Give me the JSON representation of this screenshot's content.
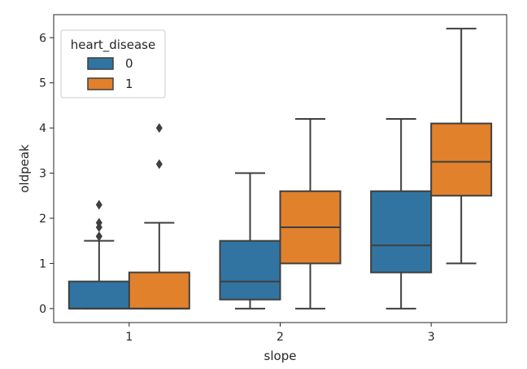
{
  "chart_data": {
    "type": "box",
    "xlabel": "slope",
    "ylabel": "oldpeak",
    "categories": [
      "1",
      "2",
      "3"
    ],
    "ylim": [
      -0.31,
      6.51
    ],
    "yticks": [
      0,
      1,
      2,
      3,
      4,
      5,
      6
    ],
    "legend": {
      "title": "heart_disease",
      "placement": "top-left"
    },
    "series": [
      {
        "name": "0",
        "color": "#3274a1",
        "boxes": [
          {
            "category": "1",
            "whisker_low": 0,
            "q1": 0,
            "median": 0,
            "q3": 0.6,
            "whisker_high": 1.5,
            "outliers": [
              1.6,
              1.6,
              1.8,
              1.9,
              2.3
            ]
          },
          {
            "category": "2",
            "whisker_low": 0,
            "q1": 0.2,
            "median": 0.6,
            "q3": 1.5,
            "whisker_high": 3.0,
            "outliers": []
          },
          {
            "category": "3",
            "whisker_low": 0,
            "q1": 0.8,
            "median": 1.4,
            "q3": 2.6,
            "whisker_high": 4.2,
            "outliers": []
          }
        ]
      },
      {
        "name": "1",
        "color": "#e1812c",
        "boxes": [
          {
            "category": "1",
            "whisker_low": 0,
            "q1": 0,
            "median": 0,
            "q3": 0.8,
            "whisker_high": 1.9,
            "outliers": [
              3.2,
              4.0
            ]
          },
          {
            "category": "2",
            "whisker_low": 0,
            "q1": 1.0,
            "median": 1.8,
            "q3": 2.6,
            "whisker_high": 4.2,
            "outliers": []
          },
          {
            "category": "3",
            "whisker_low": 1.0,
            "q1": 2.5,
            "median": 3.25,
            "q3": 4.1,
            "whisker_high": 6.2,
            "outliers": []
          }
        ]
      }
    ]
  }
}
